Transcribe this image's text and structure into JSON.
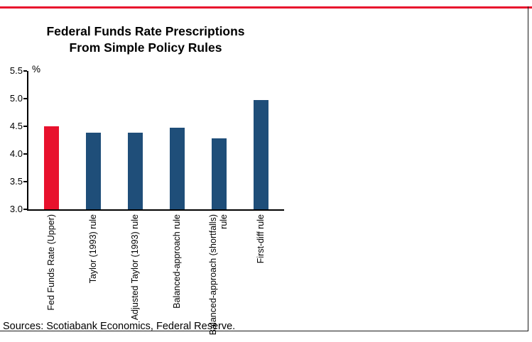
{
  "title": {
    "line1": "Federal Funds Rate Prescriptions",
    "line2": "From Simple Policy Rules"
  },
  "source": "Sources: Scotiabank Economics, Federal Reserve.",
  "colors": {
    "accent_red": "#e8112d",
    "bar_blue": "#1f4e79",
    "bar_red": "#e8112d",
    "axis_black": "#000000"
  },
  "chart_data": {
    "type": "bar",
    "title": "Federal Funds Rate Prescriptions From Simple Policy Rules",
    "categories": [
      "Fed Funds Rate (Upper)",
      "Taylor (1993) rule",
      "Adjusted Taylor (1993) rule",
      "Balanced-approach rule",
      "Balanced-approach (shortfalls) rule",
      "First-diff rule"
    ],
    "values": [
      4.5,
      4.38,
      4.38,
      4.47,
      4.28,
      4.98
    ],
    "bar_colors": [
      "#e8112d",
      "#1f4e79",
      "#1f4e79",
      "#1f4e79",
      "#1f4e79",
      "#1f4e79"
    ],
    "xlabel": "",
    "ylabel": "%",
    "ylim": [
      3.0,
      5.5
    ],
    "yticks": [
      3.0,
      3.5,
      4.0,
      4.5,
      5.0,
      5.5
    ],
    "grid": false,
    "legend_position": "none"
  }
}
